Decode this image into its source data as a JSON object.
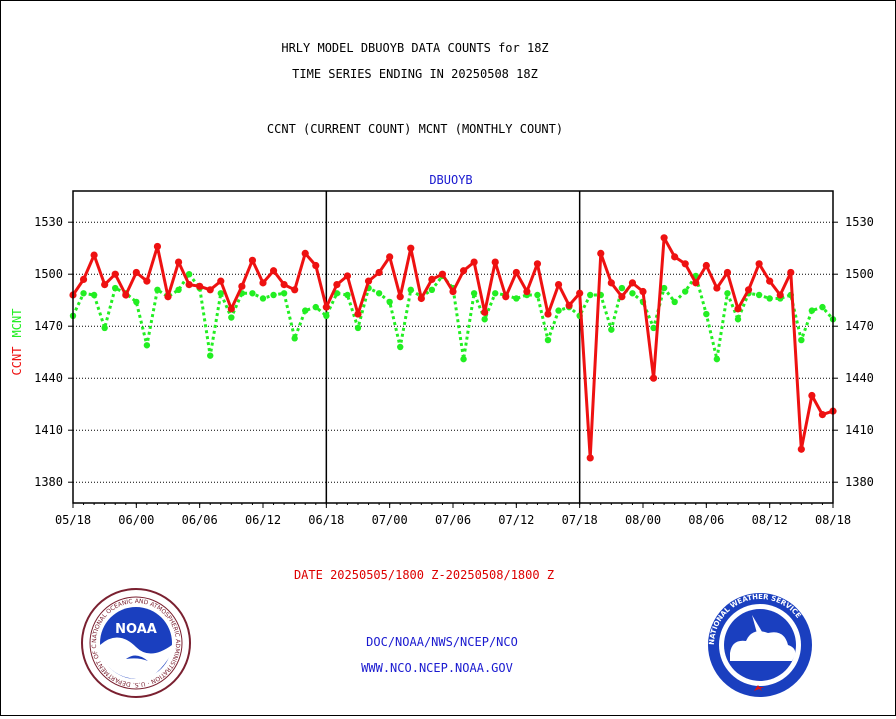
{
  "header": {
    "title_line1": "HRLY MODEL DBUOYB DATA COUNTS for 18Z",
    "title_line2": "TIME SERIES ENDING IN 20250508 18Z",
    "subtitle": "CCNT (CURRENT COUNT) MCNT (MONTHLY COUNT)"
  },
  "footer": {
    "date_range": "DATE 20250505/1800 Z-20250508/1800 Z",
    "org_path": "DOC/NOAA/NWS/NCEP/NCO",
    "url": "WWW.NCO.NCEP.NOAA.GOV",
    "noaa_logo_text": "NOAA",
    "noaa_logo_ring": "NATIONAL OCEANIC AND ATMOSPHERIC ADMINISTRATION · U.S. DEPARTMENT OF COMMERCE",
    "nws_logo_ring": "NATIONAL WEATHER SERVICE"
  },
  "colors": {
    "ccnt": "#ee1111",
    "mcnt": "#22ee22",
    "title": "#000000",
    "date": "#dd0000",
    "org": "#1a1ad0",
    "chart_title": "#1a1ad0"
  },
  "chart_data": {
    "type": "line",
    "title": "DBUOYB",
    "ylabel_ccnt": "CCNT",
    "ylabel_mcnt": "MCNT",
    "ylim": [
      1368,
      1548
    ],
    "yticks": [
      1380,
      1410,
      1440,
      1470,
      1500,
      1530
    ],
    "ytick_labels": [
      "1380",
      "1410",
      "1440",
      "1470",
      "1500",
      "1530"
    ],
    "x_start_hour": 0,
    "x_end_hour": 72,
    "xticks_hours": [
      0,
      6,
      12,
      18,
      24,
      30,
      36,
      42,
      48,
      54,
      60,
      66,
      72
    ],
    "xtick_labels": [
      "05/18",
      "06/00",
      "06/06",
      "06/12",
      "06/18",
      "07/00",
      "07/06",
      "07/12",
      "07/18",
      "08/00",
      "08/06",
      "08/12",
      "08/18"
    ],
    "day_dividers_hours": [
      24,
      48
    ],
    "grid": true,
    "series": [
      {
        "name": "CCNT",
        "style": "solid",
        "x": [
          0,
          1,
          2,
          3,
          4,
          5,
          6,
          7,
          8,
          9,
          10,
          11,
          12,
          13,
          14,
          15,
          16,
          17,
          18,
          19,
          20,
          21,
          22,
          23,
          24,
          25,
          26,
          27,
          28,
          29,
          30,
          31,
          32,
          33,
          34,
          35,
          36,
          37,
          38,
          39,
          40,
          41,
          42,
          43,
          44,
          45,
          46,
          47,
          48,
          49,
          50,
          51,
          52,
          53,
          54,
          55,
          56,
          57,
          58,
          59,
          60,
          61,
          62,
          63,
          64,
          65,
          66,
          67,
          68,
          69,
          70,
          71,
          72
        ],
        "values": [
          1488,
          1497,
          1511,
          1494,
          1500,
          1488,
          1501,
          1496,
          1516,
          1487,
          1507,
          1494,
          1493,
          1491,
          1496,
          1480,
          1493,
          1508,
          1495,
          1502,
          1494,
          1491,
          1512,
          1505,
          1481,
          1494,
          1499,
          1477,
          1496,
          1501,
          1510,
          1487,
          1515,
          1486,
          1497,
          1500,
          1490,
          1502,
          1507,
          1478,
          1507,
          1487,
          1501,
          1490,
          1506,
          1477,
          1494,
          1482,
          1489,
          1394,
          1512,
          1495,
          1487,
          1495,
          1490,
          1440,
          1521,
          1510,
          1506,
          1495,
          1505,
          1492,
          1501,
          1480,
          1491,
          1506,
          1496,
          1488,
          1501,
          1399,
          1430,
          1419,
          1421
        ]
      },
      {
        "name": "MCNT",
        "style": "dotted",
        "x": [
          0,
          1,
          2,
          3,
          4,
          5,
          6,
          7,
          8,
          9,
          10,
          11,
          12,
          13,
          14,
          15,
          16,
          17,
          18,
          19,
          20,
          21,
          22,
          23,
          24,
          25,
          26,
          27,
          28,
          29,
          30,
          31,
          32,
          33,
          34,
          35,
          36,
          37,
          38,
          39,
          40,
          41,
          42,
          43,
          44,
          45,
          46,
          47,
          48,
          49,
          50,
          51,
          52,
          53,
          54,
          55,
          56,
          57,
          58,
          59,
          60,
          61,
          62,
          63,
          64,
          65,
          66,
          67,
          68,
          69,
          70,
          71,
          72
        ],
        "values": [
          1476,
          1489,
          1488,
          1469,
          1492,
          1489,
          1484,
          1459,
          1491,
          1487,
          1491,
          1500,
          1492,
          1453,
          1489,
          1475,
          1489,
          1489,
          1486,
          1488,
          1489,
          1463,
          1479,
          1481,
          1476,
          1489,
          1488,
          1469,
          1492,
          1489,
          1484,
          1458,
          1491,
          1487,
          1491,
          1499,
          1492,
          1451,
          1489,
          1474,
          1489,
          1488,
          1486,
          1488,
          1488,
          1462,
          1479,
          1481,
          1476,
          1488,
          1488,
          1468,
          1492,
          1489,
          1484,
          1469,
          1492,
          1484,
          1490,
          1499,
          1477,
          1451,
          1489,
          1474,
          1489,
          1488,
          1486,
          1486,
          1488,
          1462,
          1479,
          1481,
          1474
        ]
      }
    ]
  }
}
